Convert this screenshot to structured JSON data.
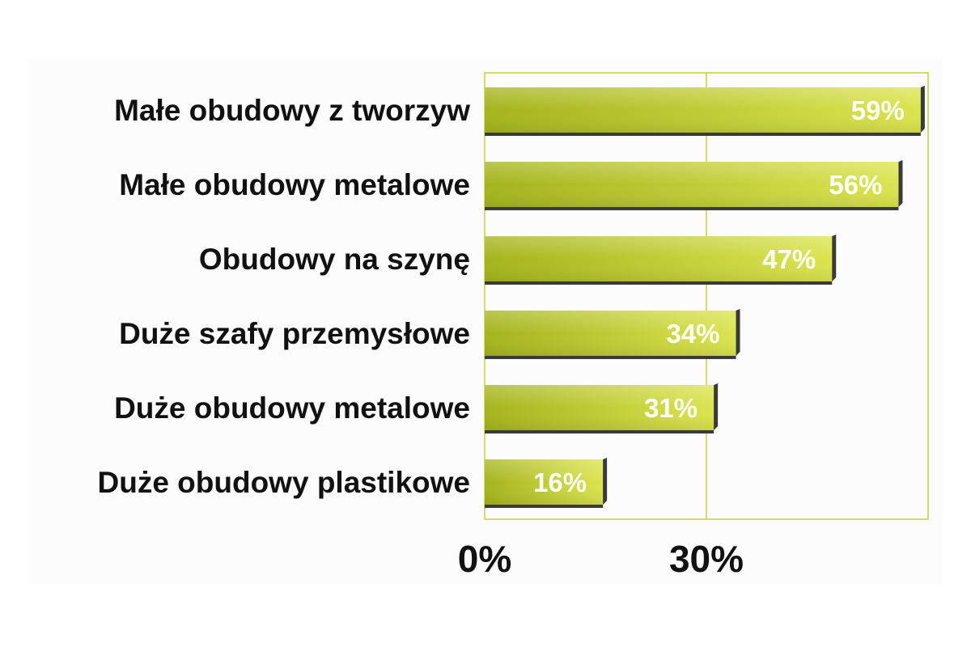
{
  "chart_data": {
    "type": "bar",
    "orientation": "horizontal",
    "categories": [
      "Małe obudowy z tworzyw",
      "Małe obudowy metalowe",
      "Obudowy na szynę",
      "Duże szafy przemysłowe",
      "Duże obudowy metalowe",
      "Duże obudowy plastikowe"
    ],
    "values": [
      59,
      56,
      47,
      34,
      31,
      16
    ],
    "value_labels": [
      "59%",
      "56%",
      "47%",
      "34%",
      "31%",
      "16%"
    ],
    "xlim": [
      0,
      60
    ],
    "x_ticks": [
      {
        "value": 0,
        "label": "0%"
      },
      {
        "value": 30,
        "label": "30%"
      }
    ],
    "grid": true,
    "legend": "none",
    "colors": {
      "bar_dark": "#a4b41c",
      "bar_light": "#dbe44e",
      "bar_shadow": "#3a3a3a",
      "plot_border": "#c8d23c",
      "gridline": "#c8d23c"
    }
  }
}
